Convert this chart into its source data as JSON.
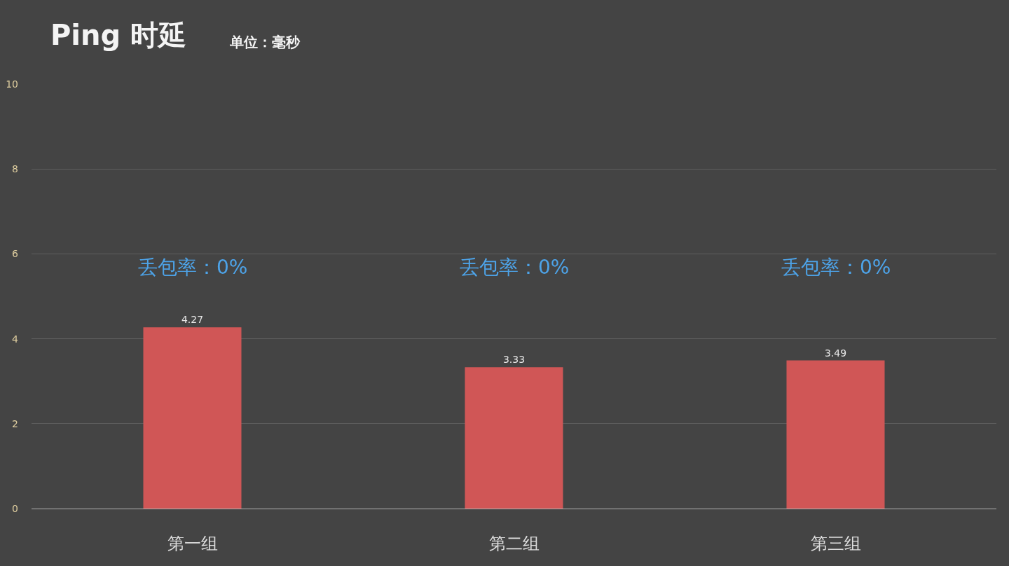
{
  "chart_data": {
    "type": "bar",
    "title": "Ping 时延",
    "subtitle": "单位：毫秒",
    "categories": [
      "第一组",
      "第二组",
      "第三组"
    ],
    "values": [
      4.27,
      3.33,
      3.49
    ],
    "color": "#d05656",
    "ylim": [
      0,
      10
    ],
    "yticks": [
      0,
      2,
      4,
      6,
      8,
      10
    ],
    "grid": "y",
    "data_labels": true,
    "annotations": [
      "丢包率：0%",
      "丢包率：0%",
      "丢包率：0%"
    ]
  }
}
